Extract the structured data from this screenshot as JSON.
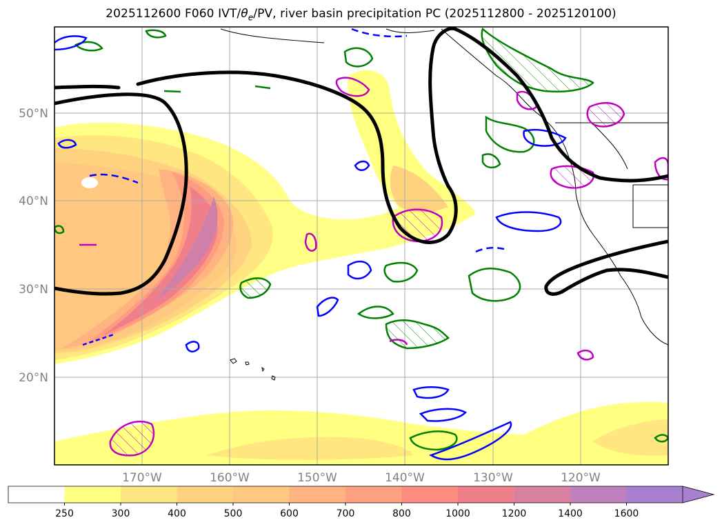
{
  "title": {
    "init": "2025112600",
    "forecast": "F060",
    "fields_prefix": "IVT/",
    "theta": "θ",
    "theta_sub": "e",
    "fields_suffix": "/PV, river basin precipitation PC (2025112800 - 2025120100)"
  },
  "map": {
    "lon_range": [
      -180,
      -110
    ],
    "lat_range": [
      10,
      60
    ],
    "lat_gridlines": [
      20,
      30,
      40,
      50
    ],
    "lon_gridlines": [
      -170,
      -160,
      -150,
      -140,
      -130,
      -120
    ],
    "lat_labels": [
      "20°N",
      "30°N",
      "40°N",
      "50°N"
    ],
    "lon_labels": [
      "170°W",
      "160°W",
      "150°W",
      "140°W",
      "130°W",
      "120°W"
    ]
  },
  "colorbar": {
    "levels": [
      "250",
      "300",
      "400",
      "500",
      "600",
      "700",
      "800",
      "1000",
      "1200",
      "1400",
      "1600"
    ],
    "colors": [
      "#ffffff",
      "#ffff80",
      "#ffe680",
      "#ffd280",
      "#ffc880",
      "#ffb380",
      "#ffa080",
      "#ff8c80",
      "#f07f8c",
      "#d880a0",
      "#c080c0",
      "#a880d0"
    ]
  },
  "legend_colors": {
    "pv_contour": "#000000",
    "precip_green": "#008000",
    "theta_blue": "#0000ff",
    "magenta": "#c000c0"
  }
}
